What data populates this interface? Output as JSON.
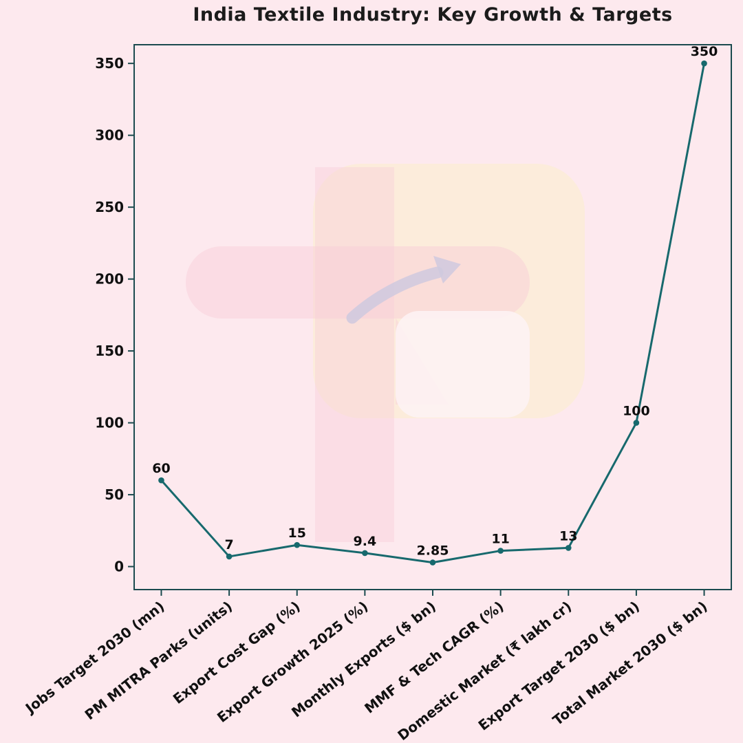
{
  "chart_data": {
    "type": "line",
    "title": "India Textile Industry: Key Growth & Targets",
    "categories": [
      "Jobs Target 2030 (mn)",
      "PM MITRA Parks (units)",
      "Export Cost Gap (%)",
      "Export Growth 2025 (%)",
      "Monthly Exports ($ bn)",
      "MMF & Tech CAGR (%)",
      "Domestic Market (₹ lakh cr)",
      "Export Target 2030 ($ bn)",
      "Total Market 2030 ($ bn)"
    ],
    "values": [
      60,
      7,
      15,
      9.4,
      2.85,
      11,
      13,
      100,
      350
    ],
    "data_labels": [
      "60",
      "7",
      "15",
      "9.4",
      "2.85",
      "11",
      "13",
      "100",
      "350"
    ],
    "yticks": [
      0,
      50,
      100,
      150,
      200,
      250,
      300,
      350
    ],
    "ylim": [
      -16,
      363
    ],
    "xlabel": "",
    "ylabel": "",
    "grid": false,
    "legend": null,
    "colors": {
      "background": "#fde9ee",
      "line": "#17696d",
      "marker": "#17696d",
      "spine": "#1a4a4e",
      "label": "#0d0d0d",
      "watermark_pink": "#f8ccd8",
      "watermark_cream": "#fcecd7",
      "watermark_light": "#fdf3f5",
      "watermark_arrow": "#cfc9de"
    }
  }
}
